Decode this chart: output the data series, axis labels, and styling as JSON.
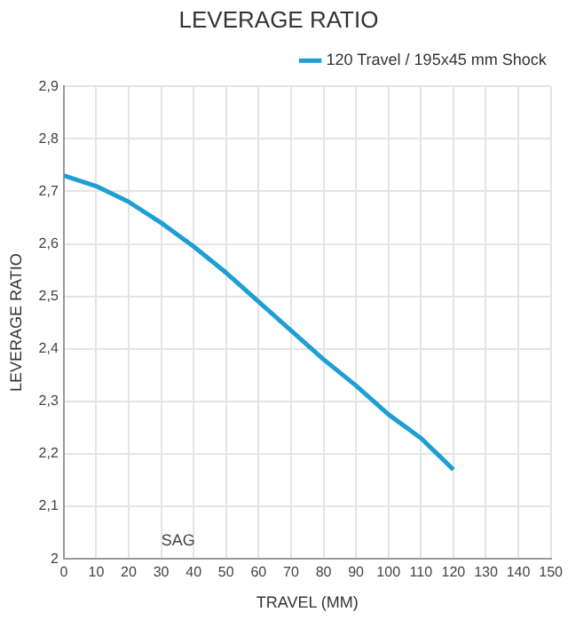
{
  "chart_data": {
    "type": "line",
    "title": "LEVERAGE RATIO",
    "xlabel": "TRAVEL (MM)",
    "ylabel": "LEVERAGE RATIO",
    "x": [
      0,
      10,
      20,
      30,
      40,
      50,
      60,
      70,
      80,
      90,
      100,
      110,
      120
    ],
    "series": [
      {
        "name": "120 Travel / 195x45 mm Shock",
        "color": "#1e9fd4",
        "values": [
          2.73,
          2.71,
          2.68,
          2.64,
          2.595,
          2.545,
          2.49,
          2.435,
          2.38,
          2.33,
          2.275,
          2.23,
          2.17
        ]
      }
    ],
    "xlim": [
      0,
      150
    ],
    "xticks": [
      0,
      10,
      20,
      30,
      40,
      50,
      60,
      70,
      80,
      90,
      100,
      110,
      120,
      130,
      140,
      150
    ],
    "ylim": [
      2,
      2.9
    ],
    "yticks": [
      {
        "value": 2,
        "label": "2"
      },
      {
        "value": 2.1,
        "label": "2,1"
      },
      {
        "value": 2.2,
        "label": "2,2"
      },
      {
        "value": 2.3,
        "label": "2,3"
      },
      {
        "value": 2.4,
        "label": "2,4"
      },
      {
        "value": 2.5,
        "label": "2,5"
      },
      {
        "value": 2.6,
        "label": "2,6"
      },
      {
        "value": 2.7,
        "label": "2,7"
      },
      {
        "value": 2.8,
        "label": "2,8"
      },
      {
        "value": 2.9,
        "label": "2,9"
      }
    ],
    "annotations": [
      "SAG"
    ],
    "grid": true,
    "legend": "top right",
    "marker": "none",
    "line_style": "solid"
  }
}
